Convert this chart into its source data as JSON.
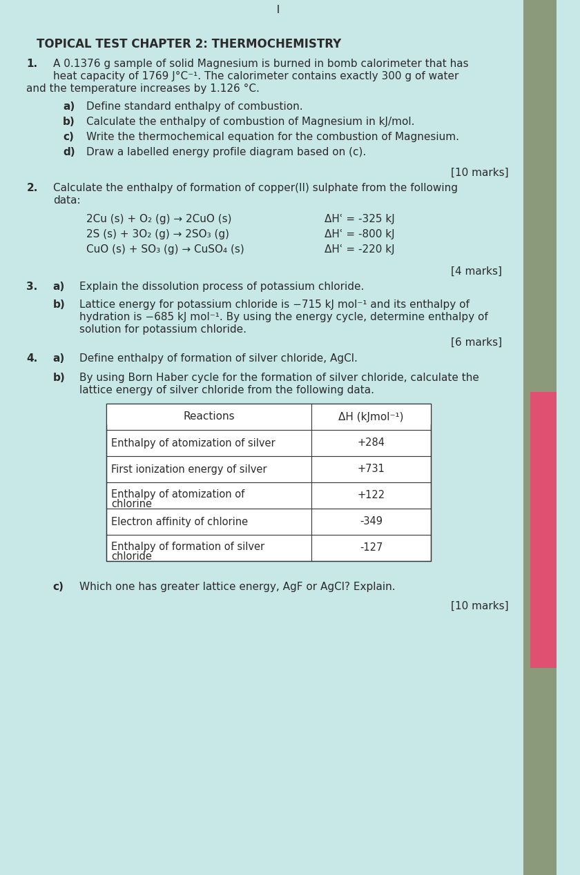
{
  "bg_color": "#c8e8e8",
  "text_color": "#2a2a2a",
  "title": "TOPICAL TEST CHAPTER 2: THERMOCHEMISTRY",
  "q1_num": "1.",
  "q1_intro": "A 0.1376 g sample of solid Magnesium is burned in bomb calorimeter that has\nheat capacity of 1769 J°C⁻¹. The calorimeter contains exactly 300 g of water\nand the temperature increases by 1.126 °C.",
  "q1_parts": [
    [
      "a)",
      "Define standard enthalpy of combustion."
    ],
    [
      "b)",
      "Calculate the enthalpy of combustion of Magnesium in kJ/mol."
    ],
    [
      "c)",
      "Write the thermochemical equation for the combustion of Magnesium."
    ],
    [
      "d)",
      "Draw a labelled energy profile diagram based on (c)."
    ]
  ],
  "q1_marks": "[10 marks]",
  "q2_num": "2.",
  "q2_intro": "Calculate the enthalpy of formation of copper(II) sulphate from the following\ndata:",
  "q2_reactions": [
    [
      "2Cu (s) + O₂ (g) → 2CuO (s)",
      "ΔHʿ = -325 kJ"
    ],
    [
      "2S (s) + 3O₂ (g) → 2SO₃ (g)",
      "ΔHʿ = -800 kJ"
    ],
    [
      "CuO (s) + SO₃ (g) → CuSO₄ (s)",
      "ΔHʿ = -220 kJ"
    ]
  ],
  "q2_marks": "[4 marks]",
  "q3_num": "3.",
  "q3a_label": "a)",
  "q3a_text": "Explain the dissolution process of potassium chloride.",
  "q3b_label": "b)",
  "q3b_text": "Lattice energy for potassium chloride is −715 kJ mol⁻¹ and its enthalpy of\nhydration is −685 kJ mol⁻¹. By using the energy cycle, determine enthalpy of\nsolution for potassium chloride.",
  "q3_marks": "[6 marks]",
  "q4_num": "4.",
  "q4a_label": "a)",
  "q4a_text": "Define enthalpy of formation of silver chloride, AgCl.",
  "q4b_label": "b)",
  "q4b_text": "By using Born Haber cycle for the formation of silver chloride, calculate the\nlattice energy of silver chloride from the following data.",
  "table_headers": [
    "Reactions",
    "ΔH (kJmol⁻¹)"
  ],
  "table_rows": [
    [
      "Enthalpy of atomization of silver",
      "+284"
    ],
    [
      "First ionization energy of silver",
      "+731"
    ],
    [
      "Enthalpy of atomization of\nchlorine",
      "+122"
    ],
    [
      "Electron affinity of chlorine",
      "-349"
    ],
    [
      "Enthalpy of formation of silver\nchloride",
      "-127"
    ]
  ],
  "q4c_label": "c)",
  "q4c_text": "Which one has greater lattice energy, AgF or AgCl? Explain.",
  "q4_marks": "[10 marks]"
}
